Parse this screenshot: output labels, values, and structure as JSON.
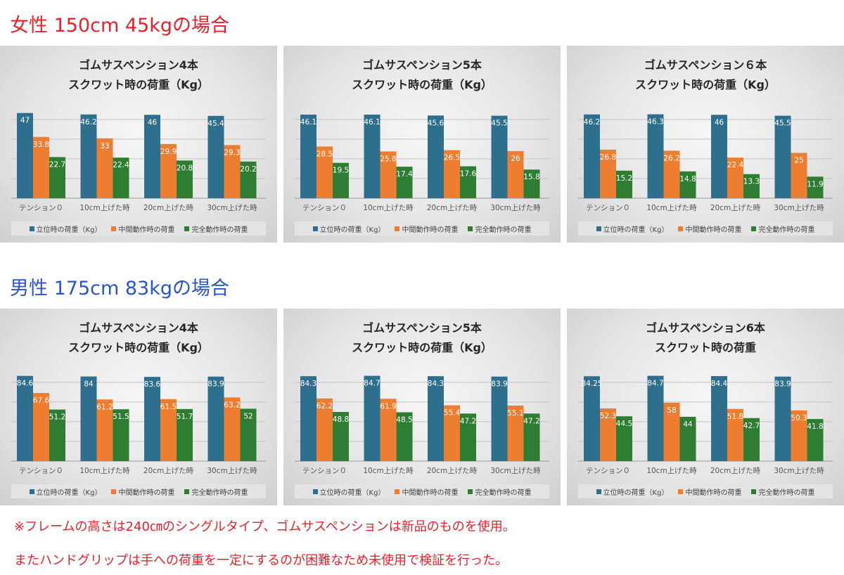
{
  "headings": {
    "female": "女性 150cm 45kgの場合",
    "male": "男性 175cm 83kgの場合"
  },
  "notes": {
    "line1": "※フレームの高さは240㎝のシングルタイプ、ゴムサスペンションは新品のものを使用。",
    "line2": "またハンドグリップは手への荷重を一定にするのが困難なため未使用で検証を行った。"
  },
  "colors": {
    "series1": "#2e6f8e",
    "series2": "#ed7d31",
    "series3": "#2e7d32"
  },
  "chart_data": [
    {
      "type": "bar",
      "title": "ゴムサスペンション4本",
      "subtitle": "スクワット時の荷重（Kg）",
      "categories": [
        "テンション０",
        "10cm上げた時",
        "20cm上げた時",
        "30cm上げた時"
      ],
      "series": [
        {
          "name": "立位時の荷重（Kg）",
          "values": [
            47,
            46.2,
            46,
            45.4
          ],
          "labels": [
            "47",
            "46.2",
            "46",
            "45.4"
          ]
        },
        {
          "name": "中間動作時の荷重",
          "values": [
            33.8,
            33,
            29.9,
            29.3
          ],
          "labels": [
            "33.8",
            "33",
            "29.9",
            "29.3"
          ]
        },
        {
          "name": "完全動作時の荷重",
          "values": [
            22.7,
            22.4,
            20.8,
            20.2
          ],
          "labels": [
            "22.7",
            "22.4",
            "20.8",
            "20.2"
          ]
        }
      ],
      "ylim": [
        0,
        50
      ]
    },
    {
      "type": "bar",
      "title": "ゴムサスペンション5本",
      "subtitle": "スクワット時の荷重（Kg）",
      "categories": [
        "テンション０",
        "10cm上げた時",
        "20cm上げた時",
        "30cm上げた時"
      ],
      "series": [
        {
          "name": "立位時の荷重（Kg）",
          "values": [
            46.1,
            46.1,
            45.6,
            45.5
          ],
          "labels": [
            "46.1",
            "46.1",
            "45.6",
            "45.5"
          ]
        },
        {
          "name": "中間動作時の荷重",
          "values": [
            28.5,
            25.8,
            26.5,
            26
          ],
          "labels": [
            "28.5",
            "25.8",
            "26.5",
            "26"
          ]
        },
        {
          "name": "完全動作時の荷重",
          "values": [
            19.5,
            17.4,
            17.6,
            15.8
          ],
          "labels": [
            "19.5",
            "17.4",
            "17.6",
            "15.8"
          ]
        }
      ],
      "ylim": [
        0,
        50
      ]
    },
    {
      "type": "bar",
      "title": "ゴムサスペンション６本",
      "subtitle": "スクワット時の荷重（Kg）",
      "categories": [
        "テンション０",
        "10cm上げた時",
        "20cm上げた時",
        "30cm上げた時"
      ],
      "series": [
        {
          "name": "立位時の荷重（Kg）",
          "values": [
            46.2,
            46.3,
            46,
            45.5
          ],
          "labels": [
            "46.2",
            "46.3",
            "46",
            "45.5"
          ]
        },
        {
          "name": "中間動作時の荷重",
          "values": [
            26.8,
            26.2,
            22.4,
            25
          ],
          "labels": [
            "26.8",
            "26.2",
            "22.4",
            "25"
          ]
        },
        {
          "name": "完全動作時の荷重",
          "values": [
            15.2,
            14.8,
            13.3,
            11.9
          ],
          "labels": [
            "15.2",
            "14.8",
            "13.3",
            "11.9"
          ]
        }
      ],
      "ylim": [
        0,
        50
      ]
    },
    {
      "type": "bar",
      "title": "ゴムサスペンション4本",
      "subtitle": "スクワット時の荷重（Kg）",
      "categories": [
        "テンション０",
        "10cm上げた時",
        "20cm上げた時",
        "30cm上げた時"
      ],
      "series": [
        {
          "name": "立位時の荷重（Kg）",
          "values": [
            84.6,
            84,
            83.6,
            83.9
          ],
          "labels": [
            "84.6",
            "84",
            "83.6",
            "83.9"
          ]
        },
        {
          "name": "中間動作時の荷重",
          "values": [
            67.6,
            61.2,
            61.5,
            63.2
          ],
          "labels": [
            "67.6",
            "61.2",
            "61.5",
            "63.2"
          ]
        },
        {
          "name": "完全動作時の荷重",
          "values": [
            51.2,
            51.5,
            51.7,
            52
          ],
          "labels": [
            "51.2",
            "51.5",
            "51.7",
            "52"
          ]
        }
      ],
      "ylim": [
        0,
        90
      ]
    },
    {
      "type": "bar",
      "title": "ゴムサスペンション5本",
      "subtitle": "スクワット時の荷重（Kg）",
      "categories": [
        "テンション０",
        "10cm上げた時",
        "20cm上げた時",
        "30cm上げた時"
      ],
      "series": [
        {
          "name": "立位時の荷重（Kg）",
          "values": [
            84.3,
            84.7,
            84.3,
            83.9
          ],
          "labels": [
            "84.3",
            "84.7",
            "84.3",
            "83.9"
          ]
        },
        {
          "name": "中間動作時の荷重",
          "values": [
            62.2,
            61.9,
            55.4,
            55.1
          ],
          "labels": [
            "62.2",
            "61.9",
            "55.4",
            "55.1"
          ]
        },
        {
          "name": "完全動作時の荷重",
          "values": [
            48.8,
            48.5,
            47.2,
            47.2
          ],
          "labels": [
            "48.8",
            "48.5",
            "47.2",
            "47.2"
          ]
        }
      ],
      "ylim": [
        0,
        90
      ]
    },
    {
      "type": "bar",
      "title": "ゴムサスペンション6本",
      "subtitle": "スクワット時の荷重",
      "categories": [
        "テンション０",
        "10cm上げた時",
        "20cm上げた時",
        "30cm上げた時"
      ],
      "series": [
        {
          "name": "立位時の荷重（Kg）",
          "values": [
            84.25,
            84.7,
            84.4,
            83.9
          ],
          "labels": [
            "84.25",
            "84.7",
            "84.4",
            "83.9"
          ]
        },
        {
          "name": "中間動作時の荷重",
          "values": [
            52.3,
            58,
            51.8,
            50.3
          ],
          "labels": [
            "52.3",
            "58",
            "51.8",
            "50.3"
          ]
        },
        {
          "name": "完全動作時の荷重",
          "values": [
            44.5,
            44,
            42.7,
            41.8
          ],
          "labels": [
            "44.5",
            "44",
            "42.7",
            "41.8"
          ]
        }
      ],
      "ylim": [
        0,
        90
      ]
    }
  ]
}
